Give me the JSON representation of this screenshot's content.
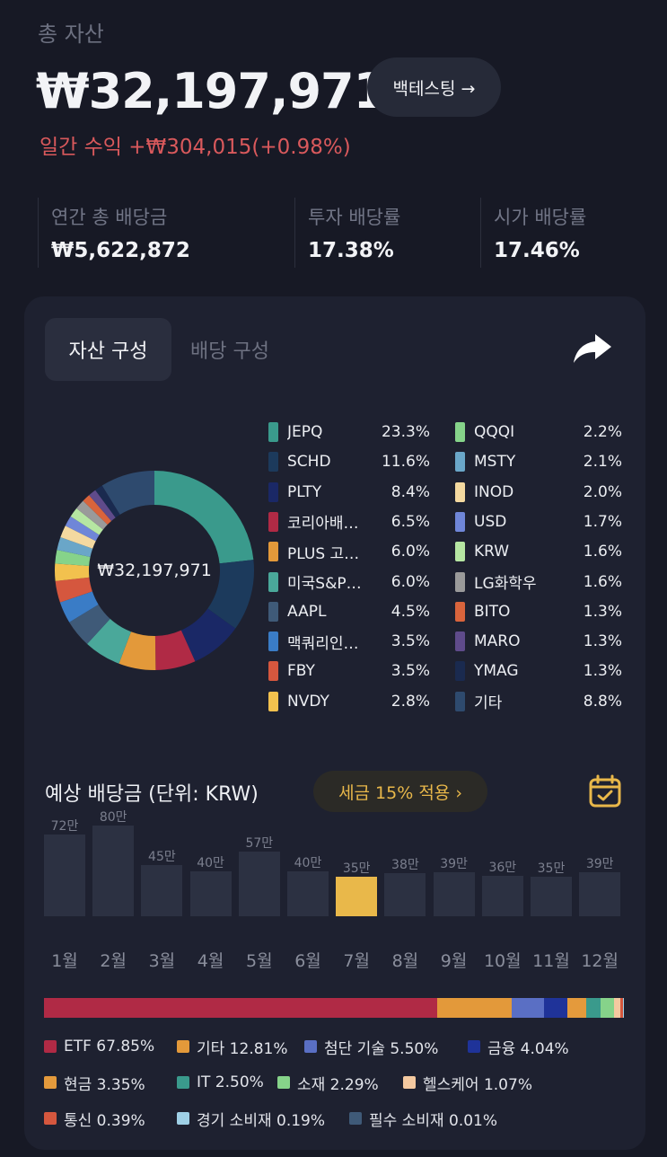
{
  "header": {
    "total_label": "총 자산",
    "total_value": "₩32,197,971",
    "backtest_label": "백테스팅 →",
    "daily_label": "일간 수익",
    "daily_value": "+₩304,015(+0.98%)"
  },
  "stats": [
    {
      "label": "연간 총 배당금",
      "value": "₩5,622,872"
    },
    {
      "label": "투자 배당률",
      "value": "17.38%"
    },
    {
      "label": "시가 배당률",
      "value": "17.46%"
    }
  ],
  "tabs": {
    "active": "자산 구성",
    "inactive": "배당 구성"
  },
  "icons": {
    "share": "share-icon",
    "calendar": "calendar-icon"
  },
  "donut": {
    "center_value": "₩32,197,971"
  },
  "holdings": [
    {
      "name": "JEPQ",
      "pct": "23.3%",
      "value": 23.3,
      "color": "#3a9a8c"
    },
    {
      "name": "SCHD",
      "pct": "11.6%",
      "value": 11.6,
      "color": "#1c3a5c"
    },
    {
      "name": "PLTY",
      "pct": "8.4%",
      "value": 8.4,
      "color": "#1a2866"
    },
    {
      "name": "코리아배…",
      "pct": "6.5%",
      "value": 6.5,
      "color": "#b02a45"
    },
    {
      "name": "PLUS 고…",
      "pct": "6.0%",
      "value": 6.0,
      "color": "#e3993a"
    },
    {
      "name": "미국S&P5…",
      "pct": "6.0%",
      "value": 6.0,
      "color": "#4aa89a"
    },
    {
      "name": "AAPL",
      "pct": "4.5%",
      "value": 4.5,
      "color": "#3f5a78"
    },
    {
      "name": "맥쿼리인…",
      "pct": "3.5%",
      "value": 3.5,
      "color": "#3a7cc6"
    },
    {
      "name": "FBY",
      "pct": "3.5%",
      "value": 3.5,
      "color": "#d5573e"
    },
    {
      "name": "NVDY",
      "pct": "2.8%",
      "value": 2.8,
      "color": "#f2c14e"
    },
    {
      "name": "QQQI",
      "pct": "2.2%",
      "value": 2.2,
      "color": "#86d38a"
    },
    {
      "name": "MSTY",
      "pct": "2.1%",
      "value": 2.1,
      "color": "#6aa6c8"
    },
    {
      "name": "INOD",
      "pct": "2.0%",
      "value": 2.0,
      "color": "#f4d9a0"
    },
    {
      "name": "USD",
      "pct": "1.7%",
      "value": 1.7,
      "color": "#6f86d8"
    },
    {
      "name": "KRW",
      "pct": "1.6%",
      "value": 1.6,
      "color": "#b6e6a2"
    },
    {
      "name": "LG화학우",
      "pct": "1.6%",
      "value": 1.6,
      "color": "#9a9a9a"
    },
    {
      "name": "BITO",
      "pct": "1.3%",
      "value": 1.3,
      "color": "#d9643c"
    },
    {
      "name": "MARO",
      "pct": "1.3%",
      "value": 1.3,
      "color": "#5f4b8b"
    },
    {
      "name": "YMAG",
      "pct": "1.3%",
      "value": 1.3,
      "color": "#1a2a4f"
    },
    {
      "name": "기타",
      "pct": "8.8%",
      "value": 8.8,
      "color": "#2e4a6e"
    }
  ],
  "dividends": {
    "title": "예상 배당금 (단위: KRW)",
    "tax_badge": "세금 15% 적용 ›",
    "highlight_month": "7월",
    "months": [
      {
        "month": "1월",
        "label": "72만",
        "value": 72
      },
      {
        "month": "2월",
        "label": "80만",
        "value": 80
      },
      {
        "month": "3월",
        "label": "45만",
        "value": 45
      },
      {
        "month": "4월",
        "label": "40만",
        "value": 40
      },
      {
        "month": "5월",
        "label": "57만",
        "value": 57
      },
      {
        "month": "6월",
        "label": "40만",
        "value": 40
      },
      {
        "month": "7월",
        "label": "35만",
        "value": 35
      },
      {
        "month": "8월",
        "label": "38만",
        "value": 38
      },
      {
        "month": "9월",
        "label": "39만",
        "value": 39
      },
      {
        "month": "10월",
        "label": "36만",
        "value": 36
      },
      {
        "month": "11월",
        "label": "35만",
        "value": 35
      },
      {
        "month": "12월",
        "label": "39만",
        "value": 39
      }
    ]
  },
  "sectors": [
    {
      "label": "ETF 67.85%",
      "value": 67.85,
      "color": "#b02a45"
    },
    {
      "label": "기타 12.81%",
      "value": 12.81,
      "color": "#e3993a"
    },
    {
      "label": "첨단 기술 5.50%",
      "value": 5.5,
      "color": "#5a6fc4"
    },
    {
      "label": "금융 4.04%",
      "value": 4.04,
      "color": "#1f3399"
    },
    {
      "label": "현금 3.35%",
      "value": 3.35,
      "color": "#e49a3c"
    },
    {
      "label": "IT 2.50%",
      "value": 2.5,
      "color": "#3a9a8c"
    },
    {
      "label": "소재 2.29%",
      "value": 2.29,
      "color": "#86d38a"
    },
    {
      "label": "헬스케어 1.07%",
      "value": 1.07,
      "color": "#f4c9a0"
    },
    {
      "label": "통신 0.39%",
      "value": 0.39,
      "color": "#d5573e"
    },
    {
      "label": "경기 소비재 0.19%",
      "value": 0.19,
      "color": "#9fd0e6"
    },
    {
      "label": "필수 소비재 0.01%",
      "value": 0.01,
      "color": "#3f5a78"
    }
  ]
}
